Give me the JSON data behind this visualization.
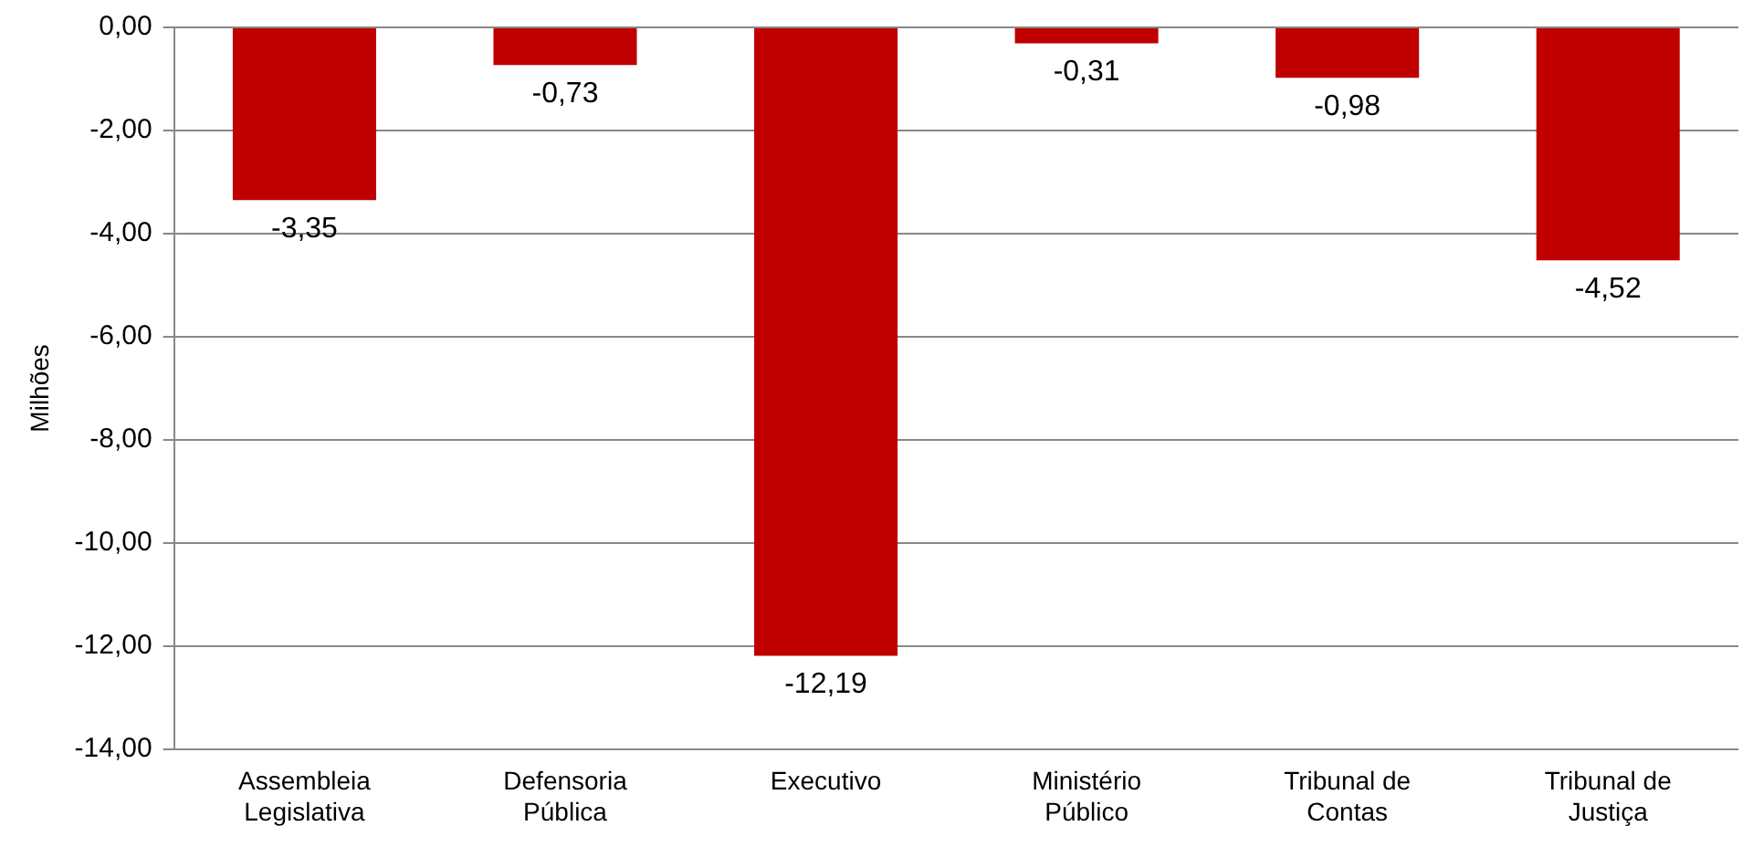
{
  "chart_data": {
    "type": "bar",
    "ylabel": "Milhões",
    "categories": [
      "Assembleia Legislativa",
      "Defensoria Pública",
      "Executivo",
      "Ministério Público",
      "Tribunal de Contas",
      "Tribunal de Justiça"
    ],
    "values": [
      -3.35,
      -0.73,
      -12.19,
      -0.31,
      -0.98,
      -4.52
    ],
    "value_labels": [
      "-3,35",
      "-0,73",
      "-12,19",
      "-0,31",
      "-0,98",
      "-4,52"
    ],
    "color": "#c00000",
    "ylim": [
      -14,
      0
    ],
    "yticks": [
      {
        "value": 0,
        "label": "0,00"
      },
      {
        "value": -2,
        "label": "-2,00"
      },
      {
        "value": -4,
        "label": "-4,00"
      },
      {
        "value": -6,
        "label": "-6,00"
      },
      {
        "value": -8,
        "label": "-8,00"
      },
      {
        "value": -10,
        "label": "-10,00"
      },
      {
        "value": -12,
        "label": "-12,00"
      },
      {
        "value": -14,
        "label": "-14,00"
      }
    ],
    "grid": "y",
    "legend": false
  }
}
